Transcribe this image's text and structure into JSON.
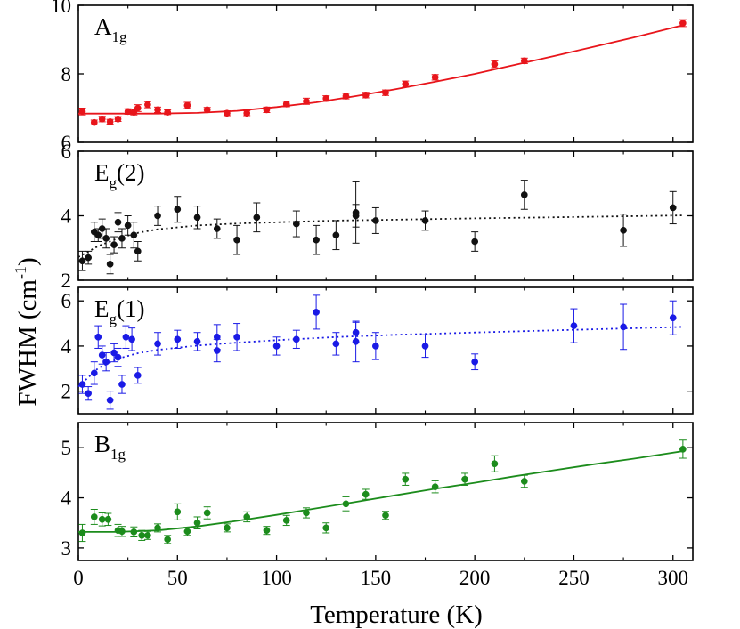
{
  "chart_data": [
    {
      "type": "scatter",
      "panel_label": "A",
      "panel_sub": "1g",
      "panel_tail": "",
      "color": "#e8151b",
      "fit": "solid",
      "ylim": [
        6,
        10
      ],
      "yticks": [
        "6",
        "8",
        "10"
      ],
      "series": [
        {
          "x": [
            2,
            8,
            12,
            16,
            20,
            25,
            28,
            30,
            35,
            40,
            45,
            55,
            65,
            75,
            85,
            95,
            105,
            115,
            125,
            135,
            145,
            155,
            165,
            180,
            210,
            225,
            305
          ],
          "y": [
            6.9,
            6.58,
            6.68,
            6.6,
            6.68,
            6.9,
            6.88,
            7.0,
            7.1,
            6.95,
            6.88,
            7.08,
            6.95,
            6.85,
            6.85,
            6.95,
            7.12,
            7.2,
            7.28,
            7.35,
            7.38,
            7.45,
            7.7,
            7.9,
            8.28,
            8.38,
            9.48
          ],
          "err": [
            0.1,
            0.07,
            0.08,
            0.07,
            0.07,
            0.08,
            0.08,
            0.1,
            0.09,
            0.08,
            0.07,
            0.09,
            0.07,
            0.07,
            0.07,
            0.08,
            0.08,
            0.09,
            0.08,
            0.08,
            0.08,
            0.08,
            0.09,
            0.08,
            0.1,
            0.08,
            0.1
          ]
        }
      ],
      "fit_x": [
        0,
        20,
        40,
        60,
        80,
        100,
        120,
        140,
        160,
        180,
        200,
        220,
        240,
        260,
        280,
        305
      ],
      "fit_y": [
        6.84,
        6.84,
        6.84,
        6.86,
        6.92,
        7.03,
        7.17,
        7.35,
        7.55,
        7.77,
        8.0,
        8.26,
        8.52,
        8.79,
        9.06,
        9.42
      ]
    },
    {
      "type": "scatter",
      "panel_label": "E",
      "panel_sub": "g",
      "panel_tail": "(2)",
      "color": "#111111",
      "fit": "dotted",
      "ylim": [
        2,
        6
      ],
      "yticks": [
        "2",
        "4",
        "6"
      ],
      "series": [
        {
          "x": [
            2,
            5,
            8,
            10,
            12,
            14,
            16,
            18,
            20,
            22,
            25,
            28,
            30,
            40,
            50,
            60,
            70,
            80,
            90,
            110,
            120,
            130,
            140,
            140,
            150,
            175,
            200,
            225,
            275,
            300
          ],
          "y": [
            2.6,
            2.7,
            3.5,
            3.4,
            3.6,
            3.3,
            2.5,
            3.1,
            3.8,
            3.3,
            3.7,
            3.4,
            2.9,
            4.0,
            4.2,
            3.95,
            3.6,
            3.25,
            3.95,
            3.75,
            3.25,
            3.4,
            4.1,
            4.0,
            3.85,
            3.85,
            3.2,
            4.65,
            3.55,
            4.25
          ],
          "err": [
            0.3,
            0.2,
            0.3,
            0.2,
            0.3,
            0.3,
            0.3,
            0.25,
            0.3,
            0.3,
            0.3,
            0.4,
            0.3,
            0.3,
            0.4,
            0.35,
            0.3,
            0.45,
            0.45,
            0.4,
            0.45,
            0.45,
            0.95,
            0.35,
            0.4,
            0.3,
            0.3,
            0.45,
            0.5,
            0.5
          ]
        }
      ],
      "fit_x": [
        0,
        10,
        20,
        30,
        40,
        60,
        80,
        100,
        130,
        160,
        200,
        250,
        305
      ],
      "fit_y": [
        2.72,
        3.06,
        3.3,
        3.47,
        3.58,
        3.7,
        3.76,
        3.8,
        3.85,
        3.88,
        3.92,
        3.96,
        4.01
      ]
    },
    {
      "type": "scatter",
      "panel_label": "E",
      "panel_sub": "g",
      "panel_tail": "(1)",
      "color": "#1a1ae6",
      "fit": "dotted",
      "ylim": [
        1,
        6.6
      ],
      "yticks": [
        "2",
        "4",
        "6"
      ],
      "ytick_values": [
        2,
        4,
        6
      ],
      "series": [
        {
          "x": [
            2,
            5,
            8,
            10,
            12,
            14,
            16,
            18,
            20,
            22,
            24,
            27,
            30,
            40,
            50,
            60,
            70,
            70,
            80,
            100,
            110,
            120,
            130,
            140,
            140,
            150,
            175,
            200,
            250,
            275,
            300
          ],
          "y": [
            2.3,
            1.9,
            2.8,
            4.4,
            3.6,
            3.3,
            1.6,
            3.7,
            3.5,
            2.3,
            4.4,
            4.3,
            2.7,
            4.1,
            4.3,
            4.2,
            3.8,
            4.4,
            4.4,
            4.0,
            4.3,
            5.5,
            4.1,
            4.6,
            4.2,
            4.0,
            4.0,
            3.3,
            4.9,
            4.85,
            5.25
          ],
          "err": [
            0.4,
            0.3,
            0.5,
            0.5,
            0.4,
            0.4,
            0.4,
            0.4,
            0.4,
            0.4,
            0.5,
            0.5,
            0.35,
            0.5,
            0.4,
            0.4,
            0.5,
            0.55,
            0.6,
            0.4,
            0.4,
            0.75,
            0.5,
            0.45,
            0.9,
            0.6,
            0.5,
            0.35,
            0.75,
            1.0,
            0.75
          ]
        }
      ],
      "fit_x": [
        0,
        10,
        20,
        30,
        40,
        60,
        80,
        100,
        130,
        160,
        200,
        250,
        305
      ],
      "fit_y": [
        2.2,
        3.02,
        3.44,
        3.68,
        3.83,
        4.02,
        4.15,
        4.26,
        4.4,
        4.5,
        4.6,
        4.72,
        4.85
      ]
    },
    {
      "type": "scatter",
      "panel_label": "B",
      "panel_sub": "1g",
      "panel_tail": "",
      "color": "#1c8c1c",
      "fit": "solid",
      "ylim": [
        2.75,
        5.5
      ],
      "yticks": [
        "3",
        "4",
        "5"
      ],
      "ytick_values": [
        3,
        4,
        5
      ],
      "series": [
        {
          "x": [
            2,
            8,
            12,
            15,
            20,
            22,
            28,
            32,
            35,
            40,
            45,
            50,
            55,
            60,
            65,
            75,
            85,
            95,
            105,
            115,
            125,
            135,
            145,
            155,
            165,
            180,
            195,
            210,
            225,
            305
          ],
          "y": [
            3.3,
            3.62,
            3.57,
            3.57,
            3.35,
            3.33,
            3.32,
            3.25,
            3.25,
            3.4,
            3.17,
            3.72,
            3.33,
            3.5,
            3.7,
            3.4,
            3.62,
            3.35,
            3.55,
            3.7,
            3.4,
            3.88,
            4.07,
            3.65,
            4.37,
            4.22,
            4.37,
            4.68,
            4.33,
            4.97
          ],
          "err": [
            0.17,
            0.15,
            0.13,
            0.12,
            0.12,
            0.1,
            0.1,
            0.1,
            0.08,
            0.08,
            0.08,
            0.16,
            0.08,
            0.12,
            0.12,
            0.08,
            0.1,
            0.08,
            0.1,
            0.1,
            0.1,
            0.14,
            0.1,
            0.08,
            0.12,
            0.12,
            0.12,
            0.16,
            0.12,
            0.18
          ]
        }
      ],
      "fit_x": [
        0,
        20,
        40,
        60,
        80,
        100,
        120,
        140,
        160,
        180,
        200,
        220,
        240,
        260,
        280,
        305
      ],
      "fit_y": [
        3.32,
        3.32,
        3.35,
        3.43,
        3.54,
        3.66,
        3.79,
        3.92,
        4.05,
        4.18,
        4.3,
        4.43,
        4.55,
        4.67,
        4.78,
        4.93
      ]
    }
  ],
  "xlabel": "Temperature (K)",
  "ylabel_main": "FWHM (cm",
  "ylabel_sup": "-1",
  "ylabel_close": ")",
  "xlim": [
    0,
    310
  ],
  "xticks": [
    "0",
    "50",
    "100",
    "150",
    "200",
    "250",
    "300"
  ]
}
